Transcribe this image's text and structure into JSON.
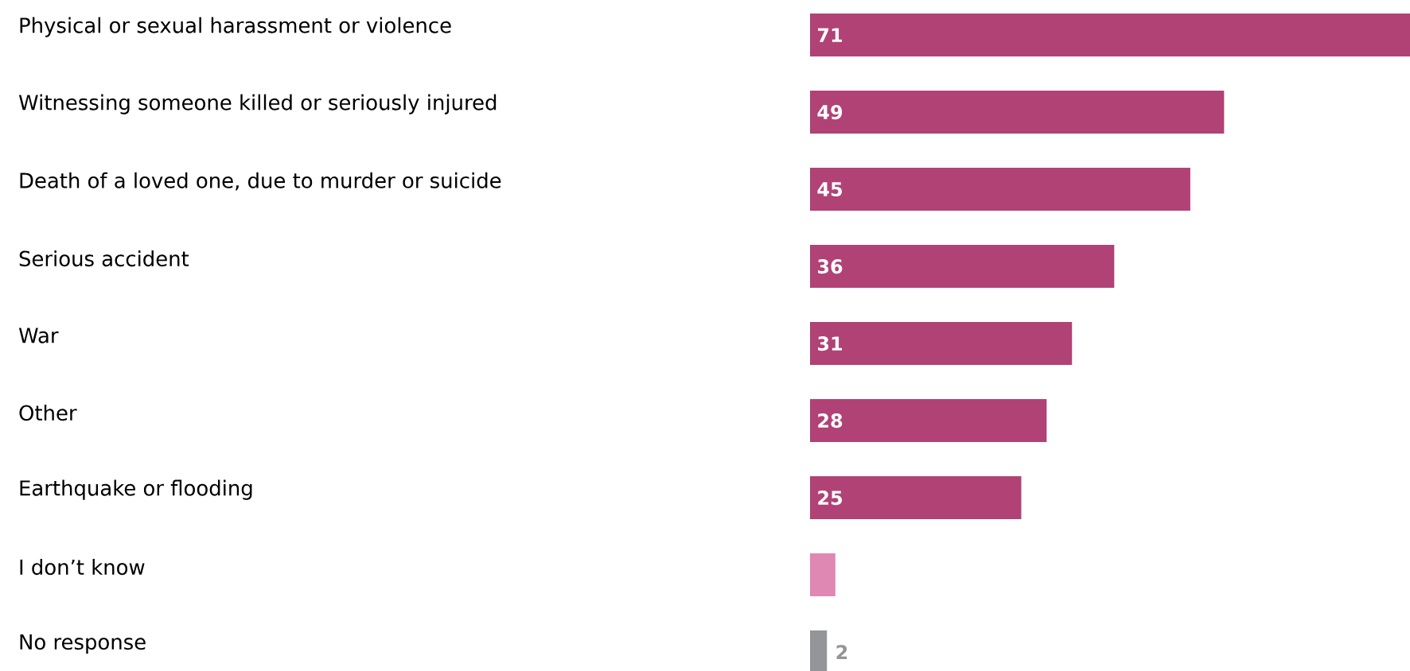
{
  "chart_data": {
    "type": "bar",
    "orientation": "horizontal",
    "categories": [
      "Physical or sexual harassment or violence",
      "Witnessing someone killed or seriously injured",
      "Death of a loved one, due to murder or suicide",
      "Serious accident",
      "War",
      "Other",
      "Earthquake or flooding",
      "I don’t know",
      "No response"
    ],
    "values": [
      71,
      49,
      45,
      36,
      31,
      28,
      25,
      3,
      2
    ],
    "colors": [
      "#b04276",
      "#b04276",
      "#b04276",
      "#b04276",
      "#b04276",
      "#b04276",
      "#b04276",
      "#de88b3",
      "#939598"
    ],
    "value_labels": [
      "71",
      "49",
      "45",
      "36",
      "31",
      "28",
      "25",
      null,
      "2"
    ],
    "xlim": [
      0,
      71
    ],
    "tick_labels": "y"
  }
}
